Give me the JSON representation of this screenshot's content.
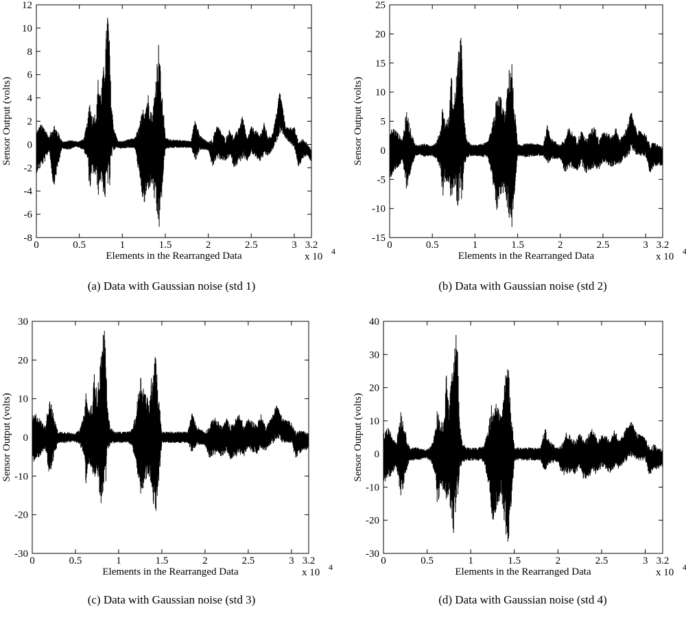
{
  "chart_data": [
    {
      "type": "line",
      "caption": "(a)  Data with Gaussian noise (std 1)",
      "xlabel": "Elements in the Rearranged Data",
      "ylabel": "Sensor Output (volts)",
      "x_multiplier": "x 10",
      "x_exponent": "4",
      "xlim": [
        0,
        3.2
      ],
      "ylim": [
        -8,
        12
      ],
      "xticks": [
        "0",
        "0.5",
        "1",
        "1.5",
        "2",
        "2.5",
        "3",
        "3.2"
      ],
      "yticks": [
        "-8",
        "-6",
        "-4",
        "-2",
        "0",
        "2",
        "4",
        "6",
        "8",
        "10",
        "12"
      ],
      "series": [
        {
          "color": "#000000",
          "envelope": {
            "x": [
              0,
              0.05,
              0.1,
              0.15,
              0.2,
              0.25,
              0.3,
              0.35,
              0.4,
              0.45,
              0.5,
              0.55,
              0.6,
              0.62,
              0.65,
              0.7,
              0.72,
              0.75,
              0.8,
              0.83,
              0.85,
              0.87,
              0.9,
              0.95,
              1.0,
              1.05,
              1.1,
              1.15,
              1.2,
              1.25,
              1.3,
              1.35,
              1.4,
              1.43,
              1.45,
              1.48,
              1.5,
              1.6,
              1.7,
              1.8,
              1.85,
              1.9,
              2.0,
              2.05,
              2.1,
              2.2,
              2.25,
              2.3,
              2.4,
              2.45,
              2.5,
              2.6,
              2.65,
              2.7,
              2.75,
              2.8,
              2.83,
              2.86,
              2.9,
              3.0,
              3.05,
              3.1,
              3.15,
              3.2
            ],
            "max": [
              1.2,
              1.8,
              1.5,
              0.6,
              2.0,
              1.2,
              0.3,
              0.3,
              0.4,
              0.3,
              0.3,
              0.5,
              2.2,
              4.0,
              2.5,
              3.0,
              6.0,
              4.5,
              8.0,
              12.0,
              9.0,
              4.0,
              1.5,
              0.3,
              0.3,
              0.4,
              0.5,
              0.6,
              1.8,
              3.5,
              4.5,
              2.5,
              7.0,
              9.5,
              5.0,
              3.0,
              0.6,
              0.4,
              0.4,
              0.3,
              2.5,
              0.8,
              0.2,
              0.5,
              1.8,
              0.5,
              1.4,
              0.6,
              2.5,
              0.5,
              1.6,
              0.9,
              1.9,
              0.6,
              1.0,
              3.0,
              4.7,
              3.5,
              1.5,
              1.5,
              0.3,
              0.5,
              0.2,
              -0.5
            ],
            "min": [
              -2.5,
              -2.0,
              -1.5,
              -0.5,
              -3.8,
              -2.0,
              -0.3,
              -0.5,
              -0.4,
              -0.2,
              -0.3,
              -0.5,
              -1.5,
              -4.2,
              -2.5,
              -3.0,
              -4.5,
              -3.0,
              -5.0,
              -3.5,
              -4.5,
              -1.5,
              -0.5,
              -0.3,
              -0.4,
              -0.3,
              -0.3,
              -0.4,
              -3.0,
              -5.5,
              -4.0,
              -3.5,
              -6.5,
              -7.5,
              -5.5,
              -2.5,
              -0.4,
              -0.3,
              -0.3,
              -0.3,
              -1.5,
              -0.5,
              -0.5,
              -2.0,
              -1.2,
              -1.5,
              -1.0,
              -2.0,
              -1.3,
              -1.5,
              -0.8,
              -1.5,
              -1.0,
              -1.0,
              -0.5,
              0.3,
              1.0,
              1.0,
              0.5,
              -0.3,
              -2.0,
              -1.2,
              -1.0,
              -1.5
            ]
          }
        }
      ]
    },
    {
      "type": "line",
      "caption": "(b)  Data with Gaussian noise (std 2)",
      "xlabel": "Elements in the Rearranged Data",
      "ylabel": "Sensor Output (volts)",
      "x_multiplier": "x 10",
      "x_exponent": "4",
      "xlim": [
        0,
        3.2
      ],
      "ylim": [
        -15,
        25
      ],
      "xticks": [
        "0",
        "0.5",
        "1",
        "1.5",
        "2",
        "2.5",
        "3",
        "3.2"
      ],
      "yticks": [
        "-15",
        "-10",
        "-5",
        "0",
        "5",
        "10",
        "15",
        "20",
        "25"
      ],
      "series": [
        {
          "color": "#000000",
          "envelope": {
            "x": [
              0,
              0.05,
              0.1,
              0.15,
              0.2,
              0.25,
              0.3,
              0.35,
              0.4,
              0.45,
              0.5,
              0.55,
              0.6,
              0.62,
              0.65,
              0.7,
              0.72,
              0.75,
              0.8,
              0.83,
              0.85,
              0.87,
              0.9,
              0.95,
              1.0,
              1.05,
              1.1,
              1.15,
              1.2,
              1.25,
              1.3,
              1.35,
              1.4,
              1.43,
              1.45,
              1.48,
              1.5,
              1.6,
              1.7,
              1.8,
              1.85,
              1.9,
              2.0,
              2.05,
              2.1,
              2.2,
              2.25,
              2.3,
              2.4,
              2.45,
              2.5,
              2.6,
              2.65,
              2.7,
              2.75,
              2.8,
              2.83,
              2.86,
              2.9,
              3.0,
              3.05,
              3.1,
              3.15,
              3.2
            ],
            "max": [
              3.5,
              4.0,
              3.0,
              2.0,
              7.0,
              3.5,
              1.0,
              1.0,
              1.2,
              1.0,
              1.0,
              1.5,
              4.0,
              8.0,
              5.0,
              6.0,
              14.0,
              8.0,
              16.0,
              20.5,
              17.0,
              6.0,
              2.0,
              1.0,
              1.0,
              1.2,
              1.2,
              1.5,
              4.0,
              9.0,
              10.0,
              6.0,
              14.0,
              16.5,
              10.0,
              5.0,
              1.0,
              1.2,
              1.2,
              1.0,
              4.5,
              2.0,
              1.0,
              2.0,
              4.0,
              2.0,
              3.5,
              2.0,
              4.5,
              2.0,
              3.5,
              2.5,
              4.0,
              2.0,
              3.0,
              5.0,
              7.0,
              5.0,
              3.5,
              3.0,
              1.0,
              1.5,
              1.0,
              0.5
            ],
            "min": [
              -5.0,
              -4.0,
              -3.0,
              -2.0,
              -7.0,
              -3.5,
              -1.0,
              -1.0,
              -1.2,
              -1.0,
              -1.0,
              -1.5,
              -3.5,
              -8.5,
              -5.0,
              -6.0,
              -9.0,
              -6.0,
              -11.0,
              -8.0,
              -9.0,
              -3.0,
              -1.5,
              -1.0,
              -1.0,
              -1.0,
              -1.2,
              -1.2,
              -5.0,
              -11.0,
              -8.0,
              -7.0,
              -12.0,
              -14.0,
              -10.0,
              -5.0,
              -1.0,
              -1.2,
              -1.0,
              -1.0,
              -3.0,
              -1.5,
              -1.5,
              -4.0,
              -3.0,
              -3.5,
              -2.5,
              -4.0,
              -3.0,
              -3.5,
              -2.0,
              -3.0,
              -2.5,
              -2.5,
              -1.5,
              -1.0,
              0.0,
              0.0,
              -1.0,
              -1.0,
              -4.0,
              -3.0,
              -2.5,
              -3.0
            ]
          }
        }
      ]
    },
    {
      "type": "line",
      "caption": "(c)  Data with Gaussian noise (std 3)",
      "xlabel": "Elements in the Rearranged Data",
      "ylabel": "Sensor Output (volts)",
      "x_multiplier": "x 10",
      "x_exponent": "4",
      "xlim": [
        0,
        3.2
      ],
      "ylim": [
        -30,
        30
      ],
      "xticks": [
        "0",
        "0.5",
        "1",
        "1.5",
        "2",
        "2.5",
        "3",
        "3.2"
      ],
      "yticks": [
        "-30",
        "-20",
        "-10",
        "0",
        "10",
        "20",
        "30"
      ],
      "series": [
        {
          "color": "#000000",
          "envelope": {
            "x": [
              0,
              0.05,
              0.1,
              0.15,
              0.2,
              0.25,
              0.3,
              0.35,
              0.4,
              0.45,
              0.5,
              0.55,
              0.6,
              0.62,
              0.65,
              0.7,
              0.72,
              0.75,
              0.8,
              0.83,
              0.85,
              0.87,
              0.9,
              0.95,
              1.0,
              1.05,
              1.1,
              1.15,
              1.2,
              1.25,
              1.3,
              1.35,
              1.4,
              1.43,
              1.45,
              1.48,
              1.5,
              1.6,
              1.7,
              1.8,
              1.85,
              1.9,
              2.0,
              2.05,
              2.1,
              2.2,
              2.25,
              2.3,
              2.4,
              2.45,
              2.5,
              2.6,
              2.65,
              2.7,
              2.75,
              2.8,
              2.83,
              2.86,
              2.9,
              3.0,
              3.05,
              3.1,
              3.15,
              3.2
            ],
            "max": [
              5.5,
              6.5,
              4.5,
              3.0,
              11.0,
              5.5,
              1.5,
              1.5,
              1.5,
              1.2,
              1.2,
              2.0,
              6.0,
              12.5,
              7.5,
              9.0,
              20.0,
              11.0,
              23.0,
              29.0,
              24.0,
              8.0,
              3.0,
              1.5,
              1.5,
              1.5,
              1.5,
              2.0,
              6.0,
              17.0,
              13.0,
              9.0,
              20.0,
              25.0,
              14.0,
              7.0,
              1.5,
              1.5,
              1.5,
              1.5,
              6.5,
              3.0,
              1.5,
              3.0,
              5.5,
              3.0,
              5.0,
              3.0,
              6.5,
              3.0,
              5.0,
              3.5,
              6.0,
              3.0,
              4.5,
              7.0,
              9.0,
              7.0,
              5.0,
              4.0,
              1.5,
              2.0,
              1.5,
              1.0
            ],
            "min": [
              -7.0,
              -6.0,
              -4.5,
              -3.0,
              -10.0,
              -5.5,
              -1.5,
              -1.5,
              -1.5,
              -1.2,
              -1.2,
              -2.0,
              -5.0,
              -12.5,
              -7.5,
              -9.0,
              -13.0,
              -9.0,
              -18.5,
              -12.0,
              -13.0,
              -4.5,
              -2.0,
              -1.5,
              -1.5,
              -1.5,
              -1.5,
              -2.0,
              -7.0,
              -16.5,
              -12.0,
              -10.0,
              -18.0,
              -20.5,
              -15.0,
              -7.5,
              -1.5,
              -1.5,
              -1.5,
              -1.5,
              -4.5,
              -2.0,
              -2.0,
              -5.5,
              -4.5,
              -5.0,
              -3.5,
              -6.0,
              -4.5,
              -5.0,
              -3.0,
              -4.5,
              -3.5,
              -3.5,
              -2.0,
              -1.5,
              -0.5,
              -0.5,
              -1.5,
              -1.5,
              -5.5,
              -4.0,
              -3.5,
              -3.0
            ]
          }
        }
      ]
    },
    {
      "type": "line",
      "caption": "(d)  Data with Gaussian noise (std 4)",
      "xlabel": "Elements in the Rearranged Data",
      "ylabel": "Sensor Output (volts)",
      "x_multiplier": "x 10",
      "x_exponent": "4",
      "xlim": [
        0,
        3.2
      ],
      "ylim": [
        -30,
        40
      ],
      "xticks": [
        "0",
        "0.5",
        "1",
        "1.5",
        "2",
        "2.5",
        "3",
        "3.2"
      ],
      "yticks": [
        "-30",
        "-20",
        "-10",
        "0",
        "10",
        "20",
        "30",
        "40"
      ],
      "series": [
        {
          "color": "#000000",
          "envelope": {
            "x": [
              0,
              0.05,
              0.1,
              0.15,
              0.2,
              0.25,
              0.3,
              0.35,
              0.4,
              0.45,
              0.5,
              0.55,
              0.6,
              0.62,
              0.65,
              0.7,
              0.72,
              0.75,
              0.8,
              0.83,
              0.85,
              0.87,
              0.9,
              0.95,
              1.0,
              1.05,
              1.1,
              1.15,
              1.2,
              1.25,
              1.3,
              1.35,
              1.4,
              1.43,
              1.45,
              1.48,
              1.5,
              1.6,
              1.7,
              1.8,
              1.85,
              1.9,
              2.0,
              2.05,
              2.1,
              2.2,
              2.25,
              2.3,
              2.4,
              2.45,
              2.5,
              2.6,
              2.65,
              2.7,
              2.75,
              2.8,
              2.83,
              2.86,
              2.9,
              3.0,
              3.05,
              3.1,
              3.15,
              3.2
            ],
            "max": [
              7.0,
              8.0,
              6.0,
              4.0,
              14.0,
              7.0,
              2.0,
              2.0,
              2.0,
              1.5,
              1.5,
              2.5,
              8.0,
              15.0,
              9.0,
              11.0,
              25.0,
              14.0,
              30.0,
              37.5,
              31.0,
              10.0,
              4.0,
              2.0,
              2.0,
              2.0,
              2.0,
              2.5,
              8.0,
              17.5,
              16.0,
              11.0,
              26.0,
              32.5,
              18.0,
              9.0,
              2.0,
              2.0,
              2.0,
              2.0,
              8.0,
              4.0,
              2.0,
              4.0,
              7.0,
              4.0,
              6.5,
              4.0,
              8.5,
              4.0,
              6.5,
              4.5,
              8.0,
              4.0,
              6.0,
              9.0,
              10.5,
              9.0,
              6.5,
              5.0,
              2.0,
              3.0,
              2.0,
              1.5
            ],
            "min": [
              -9.0,
              -8.0,
              -6.0,
              -4.0,
              -13.5,
              -7.0,
              -2.0,
              -2.0,
              -2.0,
              -1.5,
              -1.5,
              -2.5,
              -7.0,
              -17.0,
              -10.0,
              -12.0,
              -17.0,
              -12.0,
              -26.0,
              -16.0,
              -17.0,
              -6.0,
              -3.0,
              -2.0,
              -2.0,
              -2.0,
              -2.0,
              -2.5,
              -9.0,
              -21.0,
              -16.0,
              -13.0,
              -24.0,
              -27.5,
              -20.0,
              -10.0,
              -2.0,
              -2.0,
              -2.0,
              -2.0,
              -6.0,
              -3.0,
              -2.5,
              -7.0,
              -6.0,
              -6.5,
              -4.5,
              -8.0,
              -6.0,
              -6.5,
              -4.0,
              -6.0,
              -4.5,
              -4.5,
              -3.0,
              -2.0,
              -1.0,
              -1.0,
              -2.0,
              -2.0,
              -7.0,
              -5.0,
              -4.5,
              -4.0
            ]
          }
        }
      ]
    }
  ]
}
